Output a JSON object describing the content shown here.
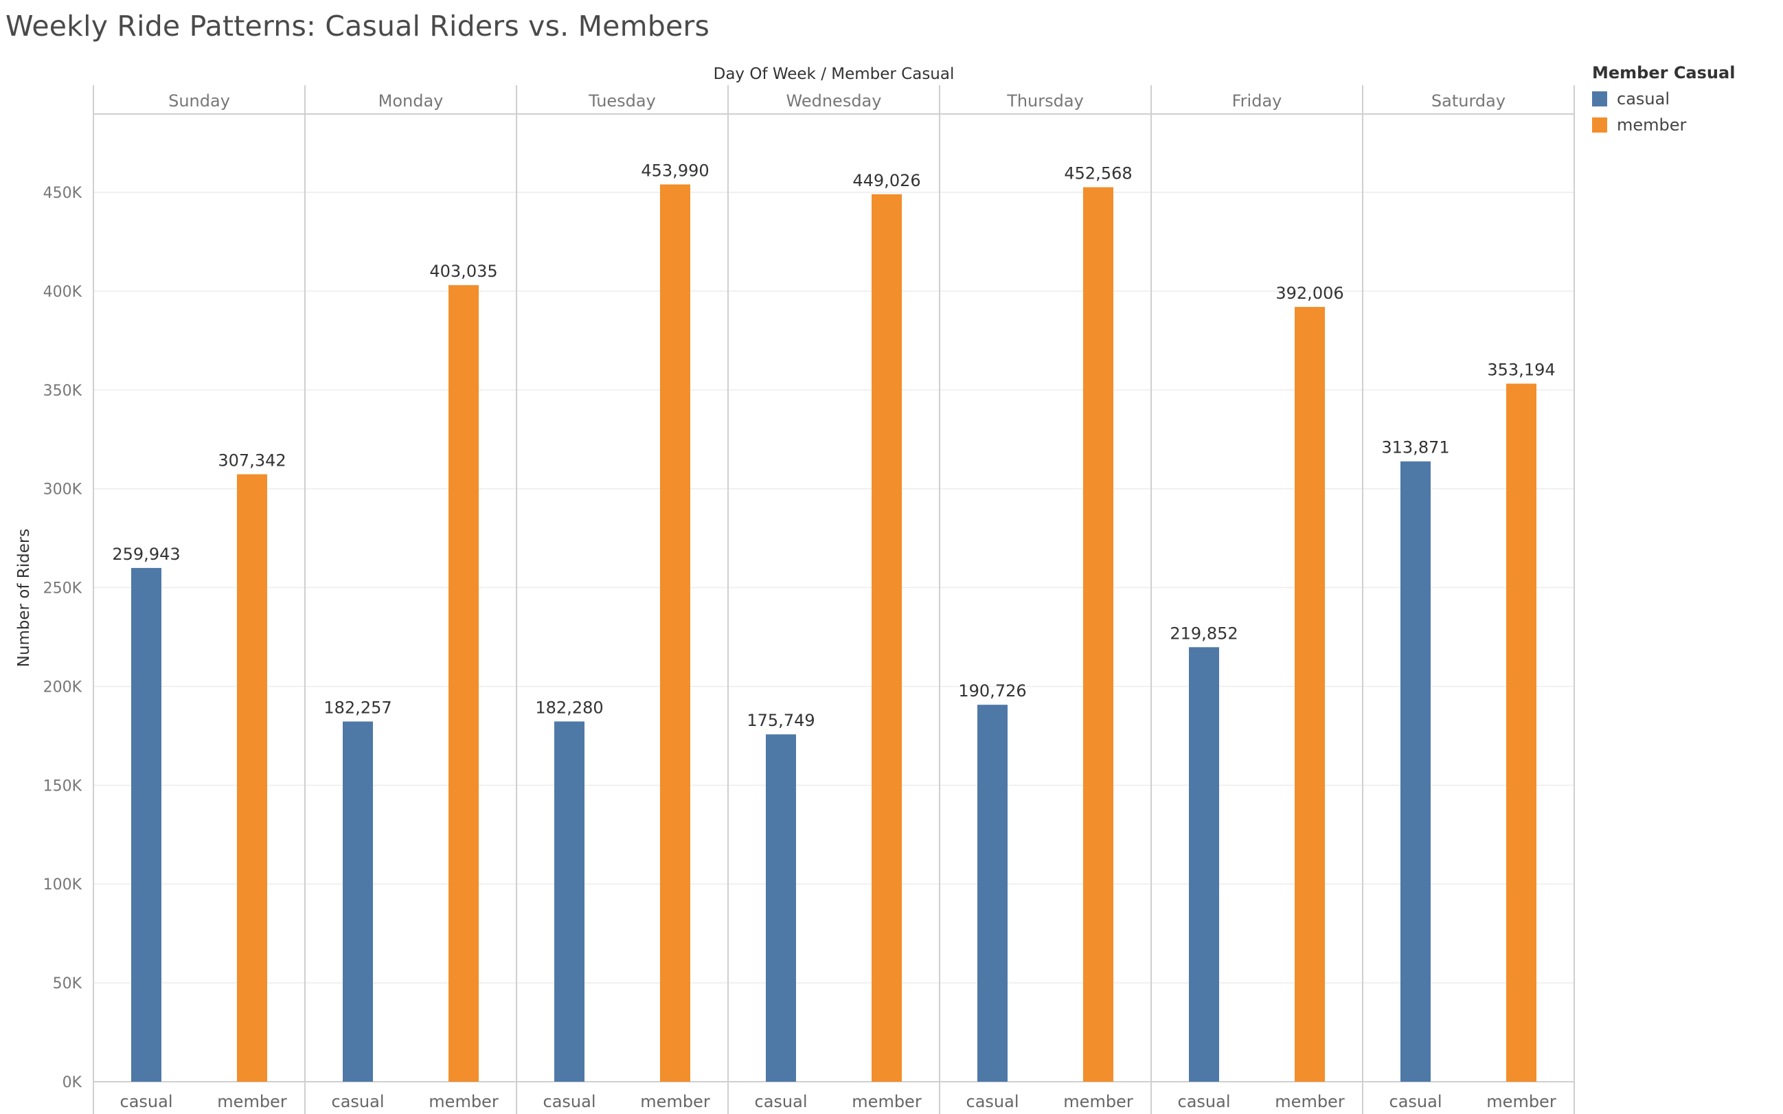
{
  "chart_data": {
    "type": "bar",
    "title": "Weekly Ride Patterns: Casual Riders vs. Members",
    "header_label": "Day Of Week  /  Member Casual",
    "ylabel": "Number of Riders",
    "ylim": [
      0,
      490000
    ],
    "yticks": [
      {
        "value": 0,
        "label": "0K"
      },
      {
        "value": 50000,
        "label": "50K"
      },
      {
        "value": 100000,
        "label": "100K"
      },
      {
        "value": 150000,
        "label": "150K"
      },
      {
        "value": 200000,
        "label": "200K"
      },
      {
        "value": 250000,
        "label": "250K"
      },
      {
        "value": 300000,
        "label": "300K"
      },
      {
        "value": 350000,
        "label": "350K"
      },
      {
        "value": 400000,
        "label": "400K"
      },
      {
        "value": 450000,
        "label": "450K"
      }
    ],
    "categories": [
      "Sunday",
      "Monday",
      "Tuesday",
      "Wednesday",
      "Thursday",
      "Friday",
      "Saturday"
    ],
    "sub_categories": [
      "casual",
      "member"
    ],
    "series": [
      {
        "name": "casual",
        "color": "#4e79a7",
        "values": [
          259943,
          182257,
          182280,
          175749,
          190726,
          219852,
          313871
        ],
        "labels": [
          "259,943",
          "182,257",
          "182,280",
          "175,749",
          "190,726",
          "219,852",
          "313,871"
        ]
      },
      {
        "name": "member",
        "color": "#f28e2b",
        "values": [
          307342,
          403035,
          453990,
          449026,
          452568,
          392006,
          353194
        ],
        "labels": [
          "307,342",
          "403,035",
          "453,990",
          "449,026",
          "452,568",
          "392,006",
          "353,194"
        ]
      }
    ],
    "legend": {
      "title": "Member Casual",
      "placement": "top-right"
    },
    "grid": true
  }
}
